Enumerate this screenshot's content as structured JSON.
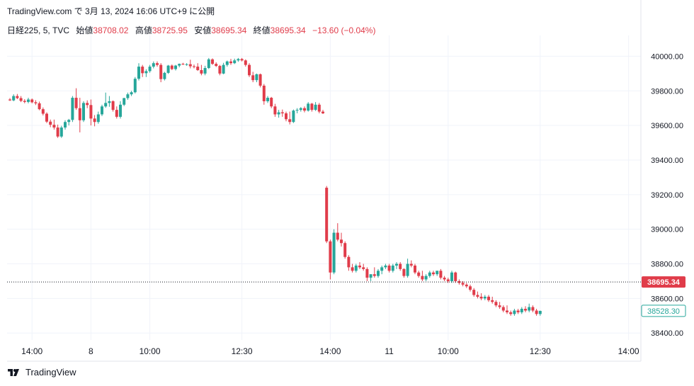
{
  "header": {
    "attribution": "TradingView.com で 3月 13, 2024 16:06 UTC+9 に公開"
  },
  "ohlc": {
    "symbol": "日経225, 5, TVC",
    "open_label": "始値",
    "open": "38708.02",
    "high_label": "高値",
    "high": "38725.95",
    "low_label": "安値",
    "low": "38695.34",
    "close_label": "終値",
    "close": "38695.34",
    "change": "−13.60 (−0.04%)"
  },
  "footer": {
    "brand": "TradingView"
  },
  "colors": {
    "up": "#26a69a",
    "down": "#e03c4a",
    "grid": "#f0f3fa",
    "text": "#131722"
  },
  "chart_data": {
    "type": "candlestick",
    "ylim": [
      38360,
      40100
    ],
    "y_ticks": [
      "40000.00",
      "39800.00",
      "39600.00",
      "39400.00",
      "39200.00",
      "39000.00",
      "38800.00",
      "38600.00",
      "38400.00"
    ],
    "y_tick_values": [
      40000,
      39800,
      39600,
      39400,
      39200,
      39000,
      38800,
      38600,
      38400
    ],
    "x_ticks": [
      "14:00",
      "8",
      "10:00",
      "12:30",
      "14:00",
      "11",
      "10:00",
      "12:30",
      "14:00"
    ],
    "x_tick_index": [
      6,
      22,
      38,
      63,
      87,
      103,
      119,
      144,
      168
    ],
    "last_price": {
      "label": "38695.34",
      "value": 38695.34,
      "color": "#e03c4a"
    },
    "current_price": {
      "label": "38528.30",
      "value": 38528.3,
      "color": "#26a69a"
    },
    "candles": [
      [
        39750,
        39758,
        39742,
        39745
      ],
      [
        39745,
        39780,
        39740,
        39770
      ],
      [
        39770,
        39782,
        39752,
        39758
      ],
      [
        39758,
        39770,
        39735,
        39742
      ],
      [
        39742,
        39752,
        39728,
        39736
      ],
      [
        39736,
        39760,
        39728,
        39750
      ],
      [
        39750,
        39756,
        39728,
        39734
      ],
      [
        39734,
        39746,
        39718,
        39728
      ],
      [
        39728,
        39738,
        39688,
        39694
      ],
      [
        39694,
        39704,
        39658,
        39668
      ],
      [
        39668,
        39676,
        39614,
        39622
      ],
      [
        39622,
        39634,
        39590,
        39604
      ],
      [
        39604,
        39634,
        39576,
        39588
      ],
      [
        39588,
        39605,
        39528,
        39536
      ],
      [
        39536,
        39598,
        39528,
        39588
      ],
      [
        39588,
        39630,
        39576,
        39620
      ],
      [
        39620,
        39638,
        39600,
        39632
      ],
      [
        39632,
        39770,
        39620,
        39760
      ],
      [
        39760,
        39815,
        39690,
        39700
      ],
      [
        39700,
        39760,
        39560,
        39630
      ],
      [
        39630,
        39740,
        39620,
        39730
      ],
      [
        39730,
        39745,
        39700,
        39718
      ],
      [
        39718,
        39750,
        39600,
        39640
      ],
      [
        39640,
        39660,
        39595,
        39620
      ],
      [
        39620,
        39680,
        39610,
        39664
      ],
      [
        39664,
        39720,
        39654,
        39710
      ],
      [
        39710,
        39790,
        39702,
        39730
      ],
      [
        39730,
        39770,
        39708,
        39740
      ],
      [
        39740,
        39745,
        39680,
        39690
      ],
      [
        39690,
        39710,
        39640,
        39650
      ],
      [
        39650,
        39740,
        39640,
        39720
      ],
      [
        39720,
        39760,
        39712,
        39758
      ],
      [
        39758,
        39790,
        39748,
        39780
      ],
      [
        39780,
        39800,
        39770,
        39792
      ],
      [
        39792,
        39880,
        39785,
        39870
      ],
      [
        39870,
        39960,
        39860,
        39940
      ],
      [
        39940,
        39950,
        39880,
        39902
      ],
      [
        39902,
        39925,
        39880,
        39914
      ],
      [
        39914,
        39950,
        39905,
        39940
      ],
      [
        39940,
        39970,
        39930,
        39960
      ],
      [
        39960,
        39970,
        39940,
        39950
      ],
      [
        39950,
        39960,
        39850,
        39868
      ],
      [
        39868,
        39910,
        39860,
        39904
      ],
      [
        39904,
        39950,
        39898,
        39946
      ],
      [
        39946,
        39952,
        39920,
        39926
      ],
      [
        39926,
        39950,
        39918,
        39946
      ],
      [
        39946,
        39958,
        39936,
        39956
      ],
      [
        39956,
        39962,
        39950,
        39952
      ],
      [
        39952,
        39960,
        39945,
        39954
      ],
      [
        39954,
        39980,
        39930,
        39942
      ],
      [
        39942,
        39952,
        39930,
        39940
      ],
      [
        39940,
        39960,
        39915,
        39920
      ],
      [
        39920,
        39950,
        39890,
        39900
      ],
      [
        39900,
        39945,
        39890,
        39932
      ],
      [
        39932,
        39990,
        39926,
        39982
      ],
      [
        39982,
        39988,
        39950,
        39956
      ],
      [
        39956,
        39965,
        39938,
        39944
      ],
      [
        39944,
        39950,
        39890,
        39900
      ],
      [
        39900,
        39962,
        39896,
        39950
      ],
      [
        39950,
        39975,
        39940,
        39970
      ],
      [
        39970,
        39985,
        39950,
        39960
      ],
      [
        39960,
        39986,
        39955,
        39976
      ],
      [
        39976,
        39990,
        39968,
        39984
      ],
      [
        39984,
        39990,
        39970,
        39976
      ],
      [
        39976,
        39982,
        39940,
        39950
      ],
      [
        39950,
        39960,
        39880,
        39890
      ],
      [
        39890,
        39910,
        39850,
        39862
      ],
      [
        39862,
        39900,
        39850,
        39896
      ],
      [
        39896,
        39900,
        39820,
        39830
      ],
      [
        39830,
        39840,
        39720,
        39740
      ],
      [
        39740,
        39770,
        39730,
        39760
      ],
      [
        39760,
        39765,
        39700,
        39710
      ],
      [
        39710,
        39725,
        39650,
        39664
      ],
      [
        39664,
        39690,
        39645,
        39676
      ],
      [
        39676,
        39692,
        39650,
        39670
      ],
      [
        39670,
        39680,
        39624,
        39636
      ],
      [
        39636,
        39680,
        39606,
        39620
      ],
      [
        39620,
        39692,
        39614,
        39686
      ],
      [
        39686,
        39700,
        39670,
        39690
      ],
      [
        39690,
        39706,
        39680,
        39700
      ],
      [
        39700,
        39710,
        39676,
        39686
      ],
      [
        39686,
        39735,
        39680,
        39726
      ],
      [
        39726,
        39730,
        39680,
        39690
      ],
      [
        39690,
        39735,
        39684,
        39720
      ],
      [
        39720,
        39730,
        39670,
        39680
      ],
      [
        39680,
        39690,
        39666,
        39670
      ],
      [
        39240,
        39250,
        38920,
        38930
      ],
      [
        38930,
        38940,
        38710,
        38750
      ],
      [
        38750,
        39000,
        38740,
        38980
      ],
      [
        38980,
        39035,
        38930,
        38940
      ],
      [
        38940,
        38980,
        38900,
        38920
      ],
      [
        38920,
        38930,
        38830,
        38840
      ],
      [
        38840,
        38850,
        38760,
        38780
      ],
      [
        38780,
        38800,
        38750,
        38760
      ],
      [
        38760,
        38800,
        38750,
        38790
      ],
      [
        38790,
        38810,
        38770,
        38780
      ],
      [
        38780,
        38800,
        38760,
        38770
      ],
      [
        38770,
        38780,
        38700,
        38720
      ],
      [
        38720,
        38740,
        38700,
        38740
      ],
      [
        38740,
        38780,
        38720,
        38730
      ],
      [
        38730,
        38770,
        38720,
        38760
      ],
      [
        38760,
        38790,
        38740,
        38780
      ],
      [
        38780,
        38800,
        38770,
        38790
      ],
      [
        38790,
        38800,
        38750,
        38760
      ],
      [
        38760,
        38800,
        38750,
        38790
      ],
      [
        38790,
        38810,
        38770,
        38800
      ],
      [
        38800,
        38810,
        38760,
        38770
      ],
      [
        38770,
        38775,
        38720,
        38730
      ],
      [
        38730,
        38830,
        38720,
        38800
      ],
      [
        38800,
        38820,
        38780,
        38790
      ],
      [
        38790,
        38800,
        38740,
        38750
      ],
      [
        38750,
        38760,
        38720,
        38730
      ],
      [
        38730,
        38760,
        38700,
        38710
      ],
      [
        38710,
        38740,
        38700,
        38730
      ],
      [
        38730,
        38760,
        38720,
        38750
      ],
      [
        38750,
        38760,
        38730,
        38740
      ],
      [
        38740,
        38760,
        38730,
        38760
      ],
      [
        38760,
        38770,
        38710,
        38720
      ],
      [
        38720,
        38730,
        38700,
        38710
      ],
      [
        38710,
        38720,
        38690,
        38700
      ],
      [
        38700,
        38760,
        38690,
        38750
      ],
      [
        38750,
        38755,
        38690,
        38700
      ],
      [
        38700,
        38710,
        38680,
        38690
      ],
      [
        38690,
        38700,
        38670,
        38680
      ],
      [
        38680,
        38690,
        38660,
        38670
      ],
      [
        38670,
        38680,
        38640,
        38650
      ],
      [
        38650,
        38660,
        38610,
        38620
      ],
      [
        38620,
        38640,
        38600,
        38610
      ],
      [
        38610,
        38630,
        38590,
        38600
      ],
      [
        38600,
        38620,
        38590,
        38610
      ],
      [
        38610,
        38620,
        38580,
        38590
      ],
      [
        38590,
        38610,
        38570,
        38580
      ],
      [
        38580,
        38590,
        38550,
        38560
      ],
      [
        38560,
        38580,
        38540,
        38550
      ],
      [
        38550,
        38560,
        38520,
        38530
      ],
      [
        38530,
        38560,
        38510,
        38520
      ],
      [
        38520,
        38530,
        38500,
        38510
      ],
      [
        38510,
        38540,
        38500,
        38530
      ],
      [
        38530,
        38540,
        38510,
        38520
      ],
      [
        38520,
        38550,
        38510,
        38540
      ],
      [
        38540,
        38555,
        38520,
        38530
      ],
      [
        38530,
        38570,
        38520,
        38550
      ],
      [
        38550,
        38560,
        38520,
        38530
      ],
      [
        38530,
        38540,
        38500,
        38510
      ],
      [
        38510,
        38530,
        38500,
        38528
      ]
    ]
  }
}
